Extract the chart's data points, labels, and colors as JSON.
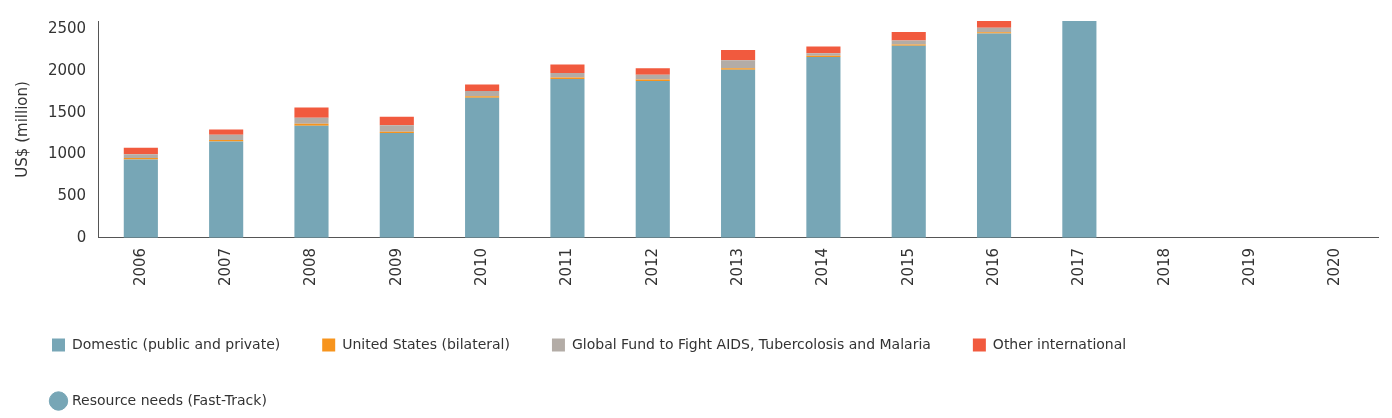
{
  "chart_data": {
    "type": "bar",
    "stacked": true,
    "ylabel": "US$ (million)",
    "categories": [
      "2006",
      "2007",
      "2008",
      "2009",
      "2010",
      "2011",
      "2012",
      "2013",
      "2014",
      "2015",
      "2016",
      "2017",
      "2018",
      "2019",
      "2020"
    ],
    "ylim": [
      0,
      2600
    ],
    "yticks": [
      0,
      500,
      1000,
      1500,
      2000,
      2500
    ],
    "grid": false,
    "legend": "bottom",
    "series": [
      {
        "name": "Domestic (public and private)",
        "color": "#77a6b6",
        "values": [
          938,
          1155,
          1345,
          1257,
          1679,
          1904,
          1880,
          2014,
          2168,
          2303,
          2449,
          2600,
          null,
          null,
          null
        ]
      },
      {
        "name": "United States (bilateral)",
        "color": "#f7941d",
        "values": [
          19,
          18,
          22,
          15,
          18,
          19,
          20,
          20,
          16,
          15,
          15,
          null,
          null,
          null,
          null
        ]
      },
      {
        "name": "Global Fund to Fight AIDS, Tubercolosis and Malaria",
        "color": "#b3aca6",
        "values": [
          44,
          62,
          74,
          77,
          63,
          52,
          55,
          95,
          28,
          48,
          56,
          null,
          null,
          null,
          null
        ]
      },
      {
        "name": "Other international",
        "color": "#f15a3e",
        "values": [
          80,
          63,
          121,
          103,
          80,
          102,
          79,
          122,
          83,
          102,
          80,
          null,
          null,
          null,
          null
        ]
      },
      {
        "name": "Resource needs (Fast-Track)",
        "type": "scatter",
        "marker": "circle",
        "color": "#77a6b6",
        "values": [
          null,
          null,
          null,
          null,
          null,
          null,
          null,
          null,
          null,
          null,
          null,
          null,
          null,
          null,
          null
        ]
      }
    ]
  }
}
